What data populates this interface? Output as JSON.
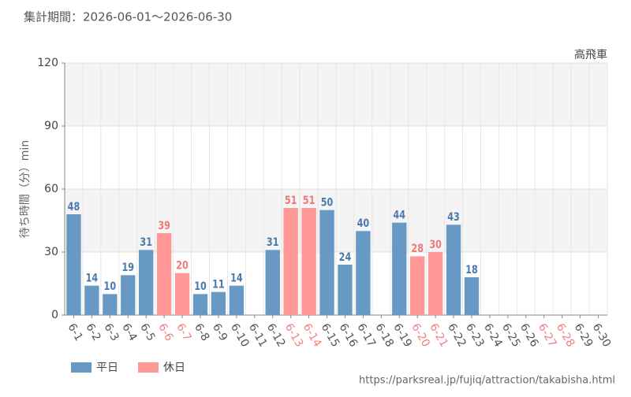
{
  "chart_data": {
    "type": "bar",
    "title": "集計期間：2026-06-01〜2026-06-30",
    "subtitle": "高飛車",
    "y_label": "待ち時間（分）min",
    "source": "https://parksreal.jp/fujiq/attraction/takabisha.html",
    "categories": [
      "6-1",
      "6-2",
      "6-3",
      "6-4",
      "6-5",
      "6-6",
      "6-7",
      "6-8",
      "6-9",
      "6-10",
      "6-11",
      "6-12",
      "6-13",
      "6-14",
      "6-15",
      "6-16",
      "6-17",
      "6-18",
      "6-19",
      "6-20",
      "6-21",
      "6-22",
      "6-23",
      "6-24",
      "6-25",
      "6-26",
      "6-27",
      "6-28",
      "6-29",
      "6-30"
    ],
    "category_colors": [
      "#555",
      "#555",
      "#555",
      "#555",
      "#555",
      "#f08080",
      "#f08080",
      "#555",
      "#555",
      "#555",
      "#555",
      "#555",
      "#f08080",
      "#f08080",
      "#555",
      "#555",
      "#555",
      "#555",
      "#555",
      "#f08080",
      "#f08080",
      "#555",
      "#555",
      "#555",
      "#555",
      "#555",
      "#f08080",
      "#f08080",
      "#555",
      "#555"
    ],
    "series": [
      {
        "name": "平日",
        "color": "#6899c4",
        "label_color": "#4a7aad",
        "values": [
          48,
          14,
          10,
          19,
          31,
          null,
          null,
          10,
          11,
          14,
          null,
          31,
          null,
          null,
          50,
          24,
          40,
          null,
          44,
          null,
          null,
          43,
          18,
          null,
          null,
          null,
          null,
          null,
          null,
          null
        ]
      },
      {
        "name": "休日",
        "color": "#ff9896",
        "label_color": "#f07878",
        "values": [
          null,
          null,
          null,
          null,
          null,
          39,
          20,
          null,
          null,
          null,
          null,
          null,
          51,
          51,
          null,
          null,
          null,
          null,
          null,
          28,
          30,
          null,
          null,
          null,
          null,
          null,
          null,
          null,
          null,
          null
        ]
      }
    ],
    "ylim": [
      0,
      120
    ],
    "yticks": [
      0,
      30,
      60,
      90,
      120
    ],
    "grid": true
  }
}
